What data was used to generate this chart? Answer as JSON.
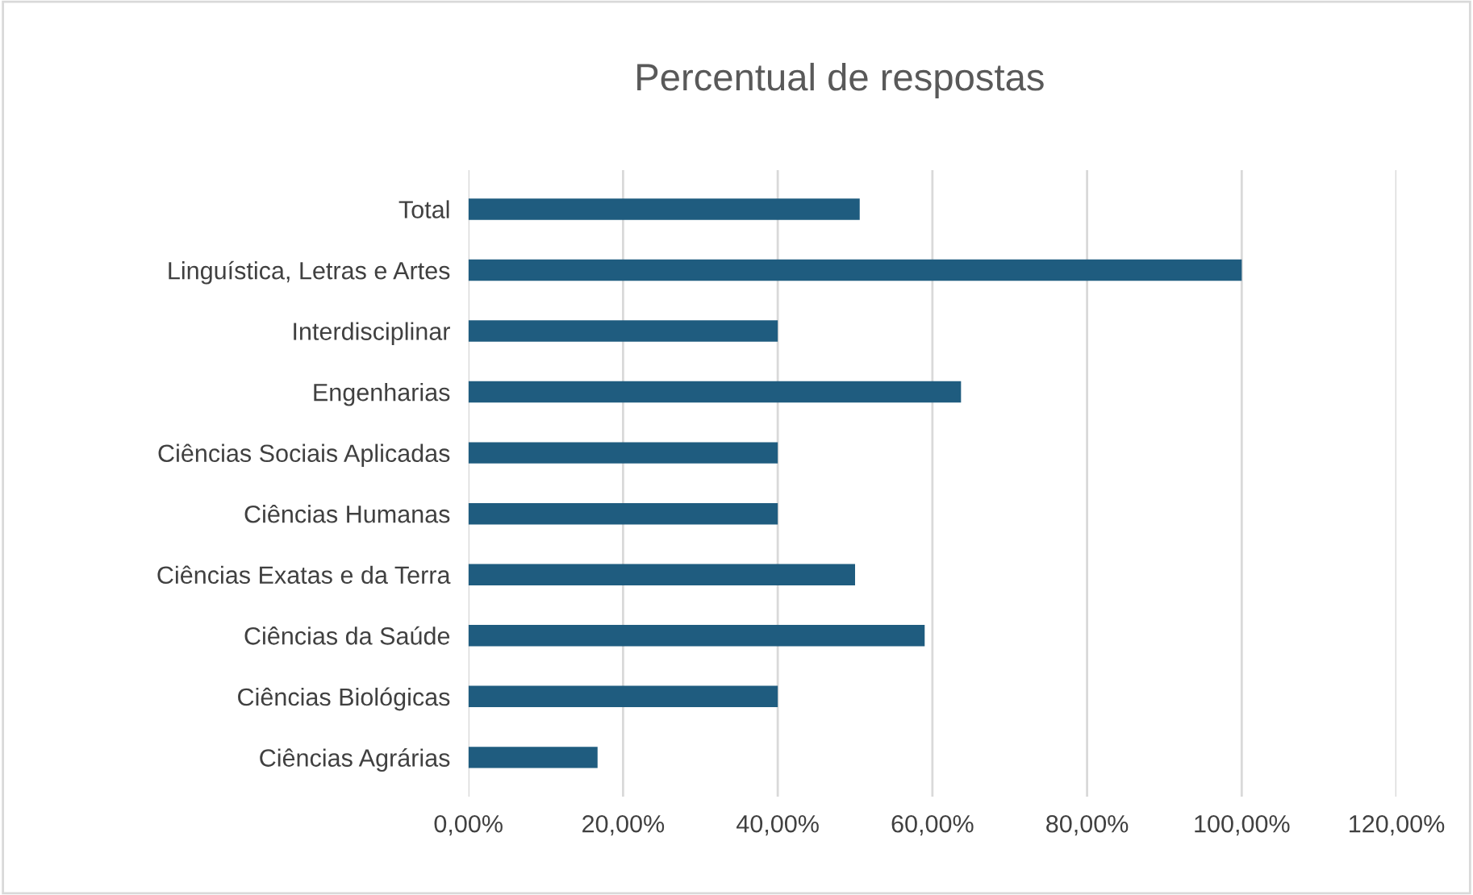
{
  "chart_data": {
    "type": "bar",
    "orientation": "horizontal",
    "title": "Percentual de respostas",
    "categories": [
      "Total",
      "Linguística, Letras e Artes",
      "Interdisciplinar",
      "Engenharias",
      "Ciências Sociais Aplicadas",
      "Ciências Humanas",
      "Ciências Exatas e da Terra",
      "Ciências da Saúde",
      "Ciências Biológicas",
      "Ciências Agrárias"
    ],
    "values": [
      0.506,
      1.0,
      0.4,
      0.637,
      0.4,
      0.4,
      0.5,
      0.59,
      0.4,
      0.167
    ],
    "color": "#1f5c7f",
    "xlim": [
      0,
      1.2
    ],
    "xticks": [
      {
        "value": 0,
        "label": "0,00%"
      },
      {
        "value": 0.2,
        "label": "20,00%"
      },
      {
        "value": 0.4,
        "label": "40,00%"
      },
      {
        "value": 0.6,
        "label": "60,00%"
      },
      {
        "value": 0.8,
        "label": "80,00%"
      },
      {
        "value": 1.0,
        "label": "100,00%"
      },
      {
        "value": 1.2,
        "label": "120,00%"
      }
    ],
    "grid": "x",
    "legend": false
  }
}
